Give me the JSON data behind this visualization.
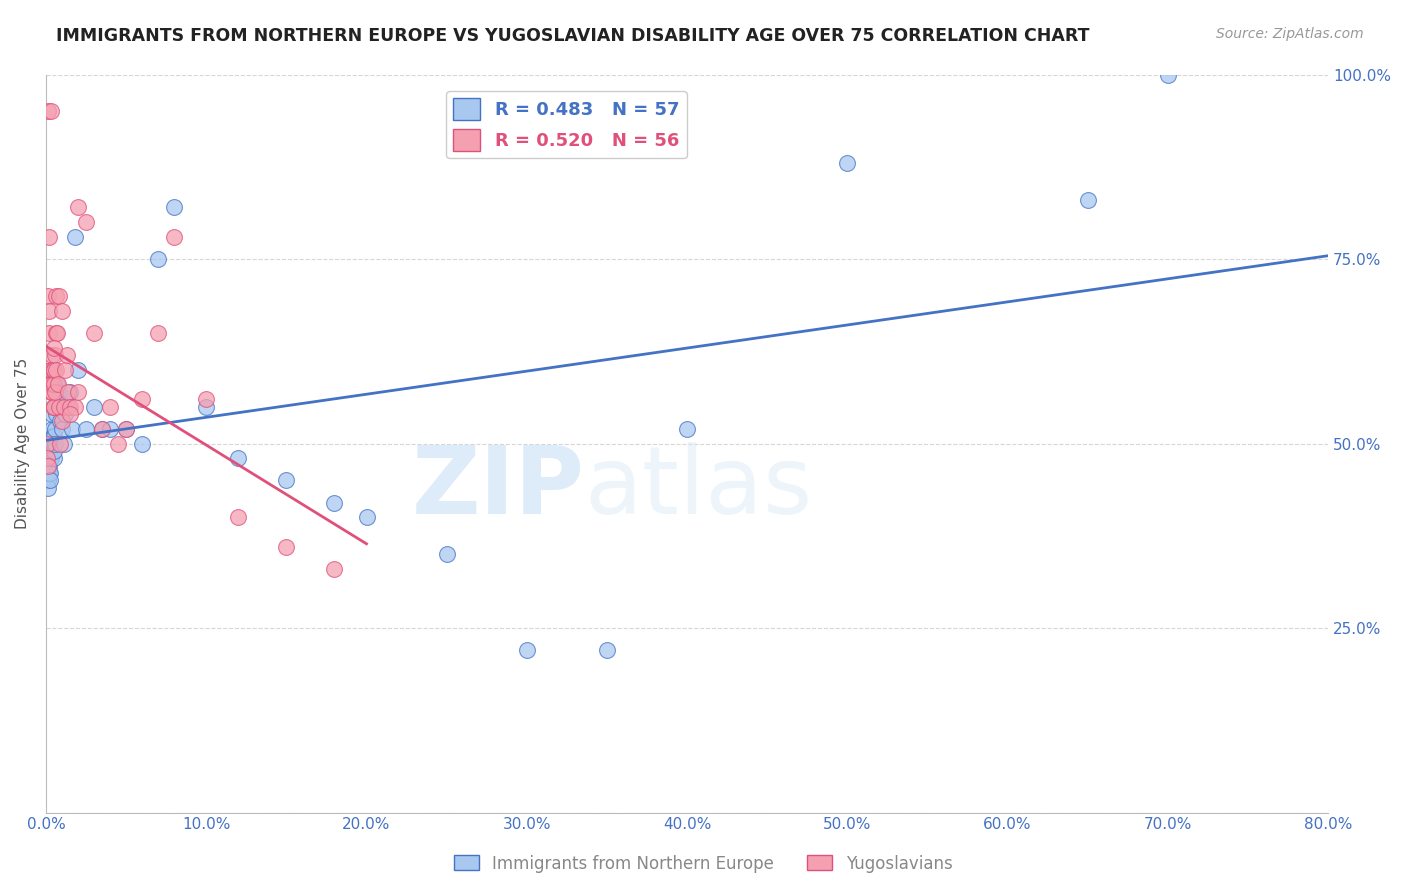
{
  "title": "IMMIGRANTS FROM NORTHERN EUROPE VS YUGOSLAVIAN DISABILITY AGE OVER 75 CORRELATION CHART",
  "source": "Source: ZipAtlas.com",
  "ylabel": "Disability Age Over 75",
  "xlim": [
    0.0,
    80.0
  ],
  "ylim": [
    0.0,
    100.0
  ],
  "blue_label": "Immigrants from Northern Europe",
  "pink_label": "Yugoslavians",
  "blue_R": 0.483,
  "blue_N": 57,
  "pink_R": 0.52,
  "pink_N": 56,
  "blue_color": "#A8C8F0",
  "pink_color": "#F4A0B0",
  "blue_line_color": "#4472C4",
  "pink_line_color": "#E0507A",
  "watermark_zip": "ZIP",
  "watermark_atlas": "atlas",
  "blue_x": [
    0.05,
    0.08,
    0.1,
    0.12,
    0.15,
    0.18,
    0.2,
    0.22,
    0.25,
    0.28,
    0.3,
    0.32,
    0.35,
    0.38,
    0.4,
    0.42,
    0.45,
    0.48,
    0.5,
    0.52,
    0.55,
    0.58,
    0.6,
    0.65,
    0.7,
    0.75,
    0.8,
    0.9,
    1.0,
    1.1,
    1.2,
    1.3,
    1.4,
    1.5,
    1.6,
    1.8,
    2.0,
    2.5,
    3.0,
    3.5,
    4.0,
    5.0,
    6.0,
    7.0,
    8.0,
    10.0,
    12.0,
    15.0,
    18.0,
    20.0,
    25.0,
    30.0,
    35.0,
    40.0,
    50.0,
    65.0,
    70.0
  ],
  "blue_y": [
    48,
    46,
    45,
    44,
    47,
    46,
    48,
    47,
    46,
    45,
    50,
    48,
    52,
    50,
    54,
    51,
    50,
    48,
    49,
    51,
    52,
    50,
    55,
    54,
    58,
    57,
    56,
    53,
    52,
    50,
    54,
    56,
    55,
    57,
    52,
    78,
    60,
    52,
    55,
    52,
    52,
    52,
    50,
    75,
    82,
    55,
    48,
    45,
    42,
    40,
    35,
    22,
    22,
    52,
    88,
    83,
    100
  ],
  "pink_x": [
    0.05,
    0.08,
    0.1,
    0.12,
    0.15,
    0.18,
    0.2,
    0.22,
    0.25,
    0.28,
    0.3,
    0.32,
    0.35,
    0.38,
    0.4,
    0.42,
    0.45,
    0.48,
    0.5,
    0.52,
    0.55,
    0.58,
    0.6,
    0.65,
    0.7,
    0.75,
    0.8,
    0.9,
    1.0,
    1.1,
    1.2,
    1.3,
    1.4,
    1.5,
    1.8,
    2.0,
    2.5,
    3.0,
    3.5,
    4.0,
    5.0,
    6.0,
    7.0,
    8.0,
    10.0,
    12.0,
    15.0,
    18.0,
    0.3,
    0.5,
    0.6,
    0.8,
    1.0,
    1.5,
    2.0,
    4.5
  ],
  "pink_y": [
    50,
    48,
    95,
    47,
    70,
    68,
    78,
    65,
    60,
    58,
    57,
    60,
    62,
    57,
    58,
    55,
    60,
    55,
    58,
    60,
    62,
    57,
    65,
    60,
    65,
    58,
    55,
    50,
    53,
    55,
    60,
    62,
    57,
    55,
    55,
    57,
    80,
    65,
    52,
    55,
    52,
    56,
    65,
    78,
    56,
    40,
    36,
    33,
    95,
    63,
    70,
    70,
    68,
    54,
    82,
    50
  ]
}
